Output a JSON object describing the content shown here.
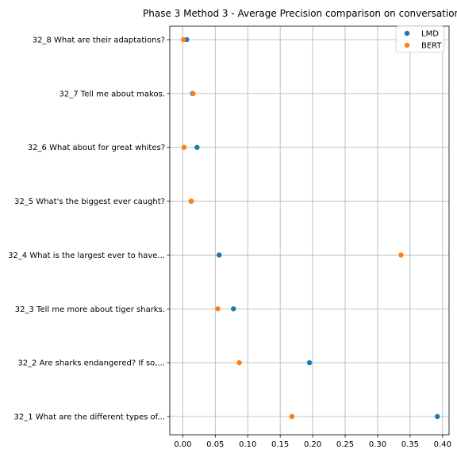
{
  "chart_data": {
    "type": "scatter",
    "title": "Phase 3 Method 3 - Average Precision comparison on conversation",
    "xlabel": "",
    "ylabel": "",
    "xlim": [
      -0.02,
      0.41
    ],
    "xticks": [
      0.0,
      0.05,
      0.1,
      0.15,
      0.2,
      0.25,
      0.3,
      0.35,
      0.4
    ],
    "xtick_labels": [
      "0.00",
      "0.05",
      "0.10",
      "0.15",
      "0.20",
      "0.25",
      "0.30",
      "0.35",
      "0.40"
    ],
    "grid": true,
    "legend": "top-right",
    "categories": [
      "32_1 What are the different types of...",
      "32_2 Are sharks endangered? If so,...",
      "32_3 Tell me more about tiger sharks.",
      "32_4 What is the largest ever to have...",
      "32_5 What's the biggest ever caught?",
      "32_6 What about for great whites?",
      "32_7 Tell me about makos.",
      "32_8 What are their adaptations?"
    ],
    "series": [
      {
        "name": "LMD",
        "color": "#1f77b4",
        "values": [
          0.392,
          0.195,
          0.078,
          0.056,
          0.013,
          0.022,
          0.015,
          0.006
        ]
      },
      {
        "name": "BERT",
        "color": "#ff7f0e",
        "values": [
          0.168,
          0.087,
          0.054,
          0.336,
          0.013,
          0.002,
          0.016,
          0.001
        ]
      }
    ]
  }
}
